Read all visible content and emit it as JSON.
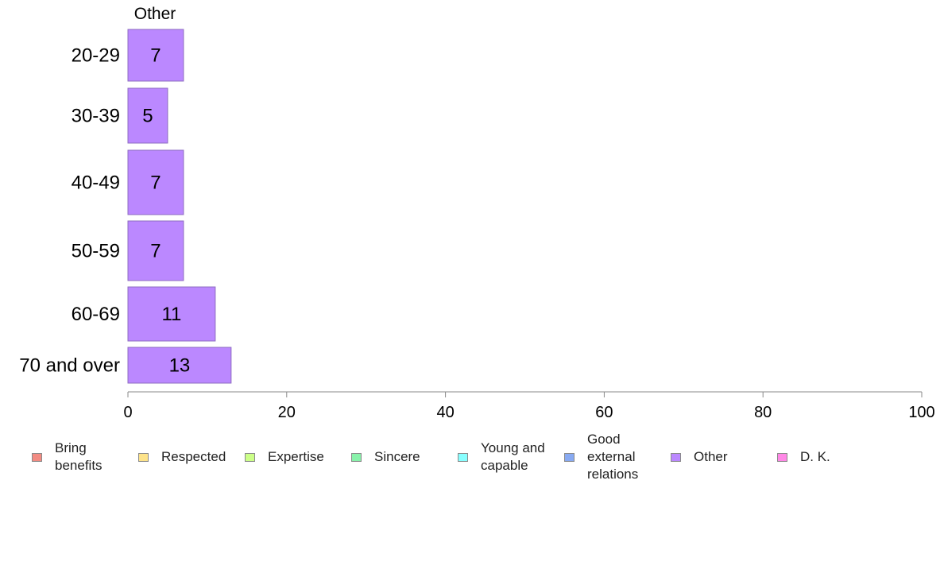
{
  "chart_data": {
    "type": "bar",
    "orientation": "horizontal",
    "panel_title": "Other",
    "categories": [
      "20-29",
      "30-39",
      "40-49",
      "50-59",
      "60-69",
      "70 and over"
    ],
    "series": [
      {
        "name": "Other",
        "values": [
          7,
          5,
          7,
          7,
          11,
          13
        ],
        "color": "#bb88ff"
      }
    ],
    "data_labels": [
      "7",
      "5",
      "7",
      "7",
      "11",
      "13"
    ],
    "xlim": [
      0,
      100
    ],
    "x_ticks": [
      0,
      20,
      40,
      60,
      80,
      100
    ],
    "x_tick_labels": [
      "0",
      "20",
      "40",
      "60",
      "80",
      "100"
    ],
    "grid": false,
    "legend_position": "bottom",
    "legend": [
      {
        "label": "Bring benefits",
        "color": "#f28b82"
      },
      {
        "label": "Respected",
        "color": "#fde38a"
      },
      {
        "label": "Expertise",
        "color": "#ccff88"
      },
      {
        "label": "Sincere",
        "color": "#88f2aa"
      },
      {
        "label": "Young and capable",
        "color": "#88ffff"
      },
      {
        "label": "Good external relations",
        "color": "#88aaf2"
      },
      {
        "label": "Other",
        "color": "#bb88ff"
      },
      {
        "label": "D. K.",
        "color": "#ff88e6"
      }
    ]
  }
}
